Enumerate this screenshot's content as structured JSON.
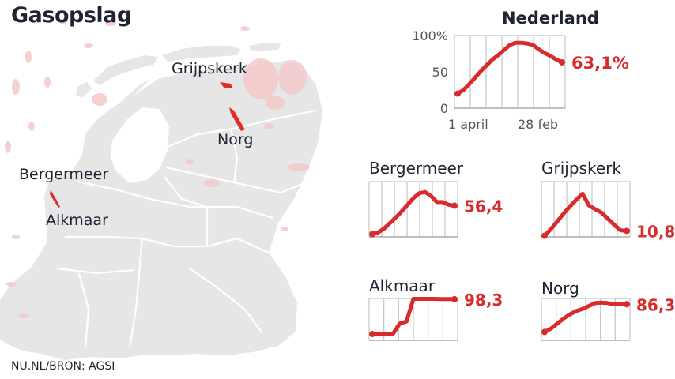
{
  "page": {
    "title": "Gasopslag",
    "source": "NU.NL/BRON: AGSI"
  },
  "map": {
    "place_labels": [
      "Grijpskerk",
      "Norg",
      "Bergermeer",
      "Alkmaar"
    ],
    "land_color": "#e6e6e6",
    "border_color": "#ffffff",
    "field_color": "#f4c9c9",
    "storage_color": "#e32a2a"
  },
  "colors": {
    "accent": "#d92b2b",
    "grid": "#c8c8c8",
    "text": "#1f2433"
  },
  "chart_data": [
    {
      "type": "line",
      "title": "Nederland",
      "x_tick_labels": [
        "1 april",
        "28 feb"
      ],
      "y_ticks": [
        0,
        50,
        100
      ],
      "y_tick_labels": [
        "0",
        "50",
        "100%"
      ],
      "ylim": [
        0,
        100
      ],
      "end_label": "63,1%",
      "values": [
        20,
        25,
        33,
        42,
        51,
        59,
        67,
        73,
        80,
        87,
        90,
        90,
        89,
        87,
        81,
        76,
        72,
        67,
        63.1
      ],
      "grid": true
    },
    {
      "type": "line",
      "title": "Bergermeer",
      "ylim": [
        0,
        100
      ],
      "end_label": "56,4",
      "values": [
        5,
        8,
        15,
        25,
        35,
        46,
        58,
        70,
        79,
        81,
        74,
        63,
        63,
        58,
        56.4
      ],
      "grid": true
    },
    {
      "type": "line",
      "title": "Grijpskerk",
      "ylim": [
        0,
        100
      ],
      "end_label": "10,8",
      "values": [
        2,
        14,
        28,
        42,
        55,
        67,
        78,
        57,
        50,
        44,
        33,
        22,
        12,
        10.8
      ],
      "grid": true
    },
    {
      "type": "line",
      "title": "Alkmaar",
      "ylim": [
        0,
        100
      ],
      "end_label": "98,3",
      "values": [
        15,
        15,
        15,
        15,
        40,
        45,
        99,
        99,
        99,
        99,
        98.5,
        98.5,
        98.3
      ],
      "grid": true
    },
    {
      "type": "line",
      "title": "Norg",
      "ylim": [
        0,
        100
      ],
      "end_label": "86,3",
      "values": [
        20,
        28,
        40,
        52,
        62,
        70,
        75,
        82,
        89,
        90,
        89,
        86,
        87.5,
        86.3
      ],
      "grid": true
    }
  ]
}
